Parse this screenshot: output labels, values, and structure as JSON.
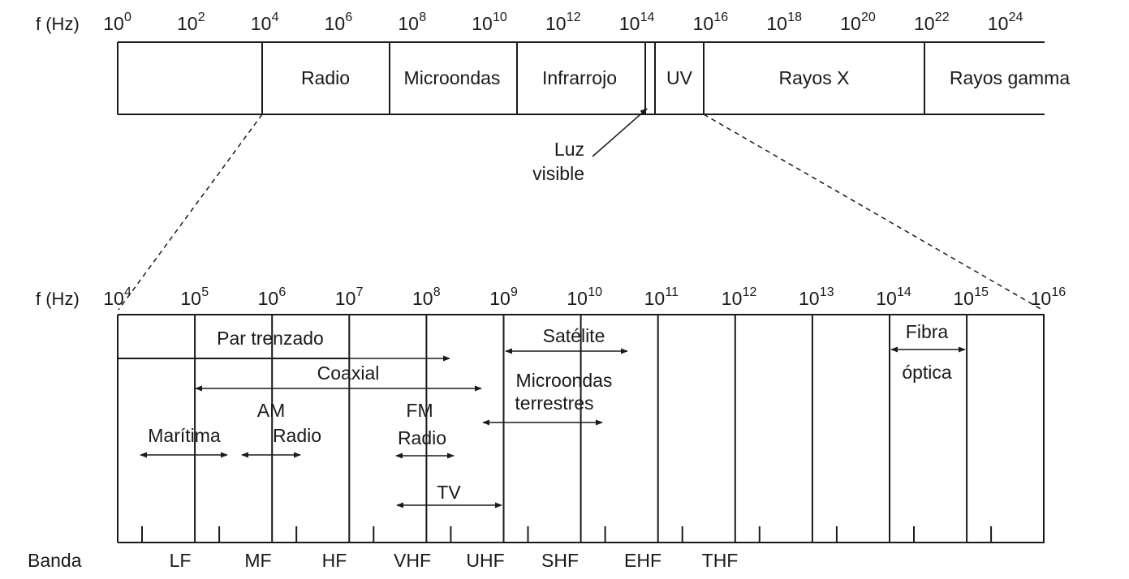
{
  "top_scale": {
    "axis_label": "f (Hz)",
    "exponents": [
      "0",
      "2",
      "4",
      "6",
      "8",
      "10",
      "12",
      "14",
      "16",
      "18",
      "20",
      "22",
      "24"
    ],
    "base": "10"
  },
  "top_bands": {
    "radio": "Radio",
    "microwave": "Microondas",
    "infrared": "Infrarrojo",
    "uv": "UV",
    "xray": "Rayos X",
    "gamma": "Rayos gamma"
  },
  "visible_light": {
    "line1": "Luz",
    "line2": "visible"
  },
  "bottom_scale": {
    "axis_label": "f (Hz)",
    "exponents": [
      "4",
      "5",
      "6",
      "7",
      "8",
      "9",
      "10",
      "11",
      "12",
      "13",
      "14",
      "15",
      "16"
    ],
    "base": "10"
  },
  "media": {
    "twisted_pair": "Par trenzado",
    "coax": "Coaxial",
    "satellite": "Satélite",
    "terrestrial_line1": "Microondas",
    "terrestrial_line2": "terrestres",
    "fiber_line1": "Fibra",
    "fiber_line2": "óptica",
    "maritime": "Marítima",
    "am_line1": "AM",
    "am_line2": "Radio",
    "fm_line1": "FM",
    "fm_line2": "Radio",
    "tv": "TV"
  },
  "bands": {
    "label": "Banda",
    "names": [
      "LF",
      "MF",
      "HF",
      "VHF",
      "UHF",
      "SHF",
      "EHF",
      "THF"
    ]
  }
}
